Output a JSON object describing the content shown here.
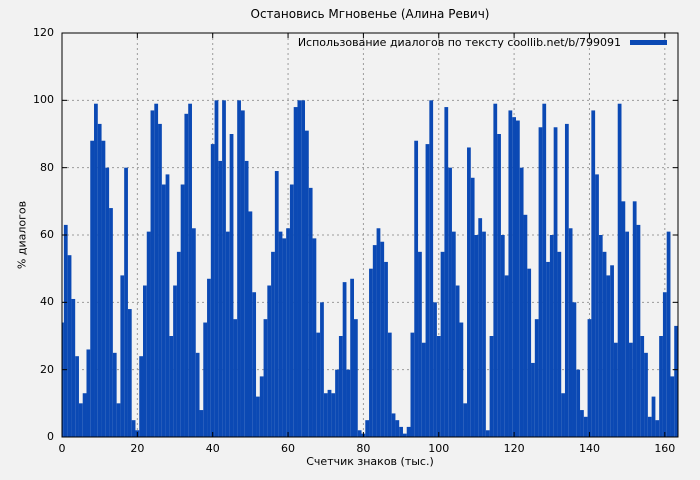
{
  "chart_data": {
    "type": "bar",
    "title": "Остановись Мгновенье (Алина Ревич)",
    "xlabel": "Счетчик знаков (тыс.)",
    "ylabel": "% диалогов",
    "legend_label": "Использование диалогов по тексту coollib.net/b/799091",
    "legend_position": "top-right",
    "grid": true,
    "xlim": [
      0,
      163.5
    ],
    "ylim": [
      0,
      120
    ],
    "xticks": [
      0,
      20,
      40,
      60,
      80,
      100,
      120,
      140,
      160
    ],
    "yticks": [
      0,
      20,
      40,
      60,
      80,
      100,
      120
    ],
    "x_start": 0,
    "x_step": 1,
    "values": [
      34,
      63,
      54,
      41,
      24,
      10,
      13,
      26,
      88,
      99,
      93,
      88,
      80,
      68,
      25,
      10,
      48,
      80,
      38,
      5,
      2,
      24,
      45,
      61,
      97,
      99,
      93,
      75,
      78,
      30,
      45,
      55,
      75,
      96,
      99,
      62,
      25,
      8,
      34,
      47,
      87,
      100,
      82,
      100,
      61,
      90,
      35,
      100,
      97,
      82,
      67,
      43,
      12,
      18,
      35,
      45,
      55,
      79,
      61,
      59,
      62,
      75,
      98,
      100,
      100,
      91,
      74,
      59,
      31,
      40,
      13,
      14,
      13,
      20,
      30,
      46,
      20,
      47,
      35,
      2,
      1,
      5,
      50,
      57,
      62,
      58,
      52,
      31,
      7,
      5,
      3,
      1,
      3,
      31,
      88,
      55,
      28,
      87,
      100,
      40,
      30,
      55,
      98,
      80,
      61,
      45,
      34,
      10,
      86,
      77,
      60,
      65,
      61,
      2,
      30,
      99,
      90,
      60,
      48,
      97,
      95,
      94,
      80,
      66,
      50,
      22,
      35,
      92,
      99,
      52,
      60,
      92,
      55,
      13,
      93,
      62,
      40,
      20,
      8,
      6,
      35,
      97,
      78,
      60,
      55,
      48,
      51,
      28,
      99,
      70,
      61,
      28,
      70,
      63,
      30,
      25,
      6,
      12,
      5,
      30,
      43,
      61,
      18,
      33
    ],
    "colors": {
      "bar": "#0b49b4",
      "background": "#f2f2f2",
      "grid": "#9c9c9c",
      "frame": "#000000",
      "text": "#000000"
    }
  }
}
